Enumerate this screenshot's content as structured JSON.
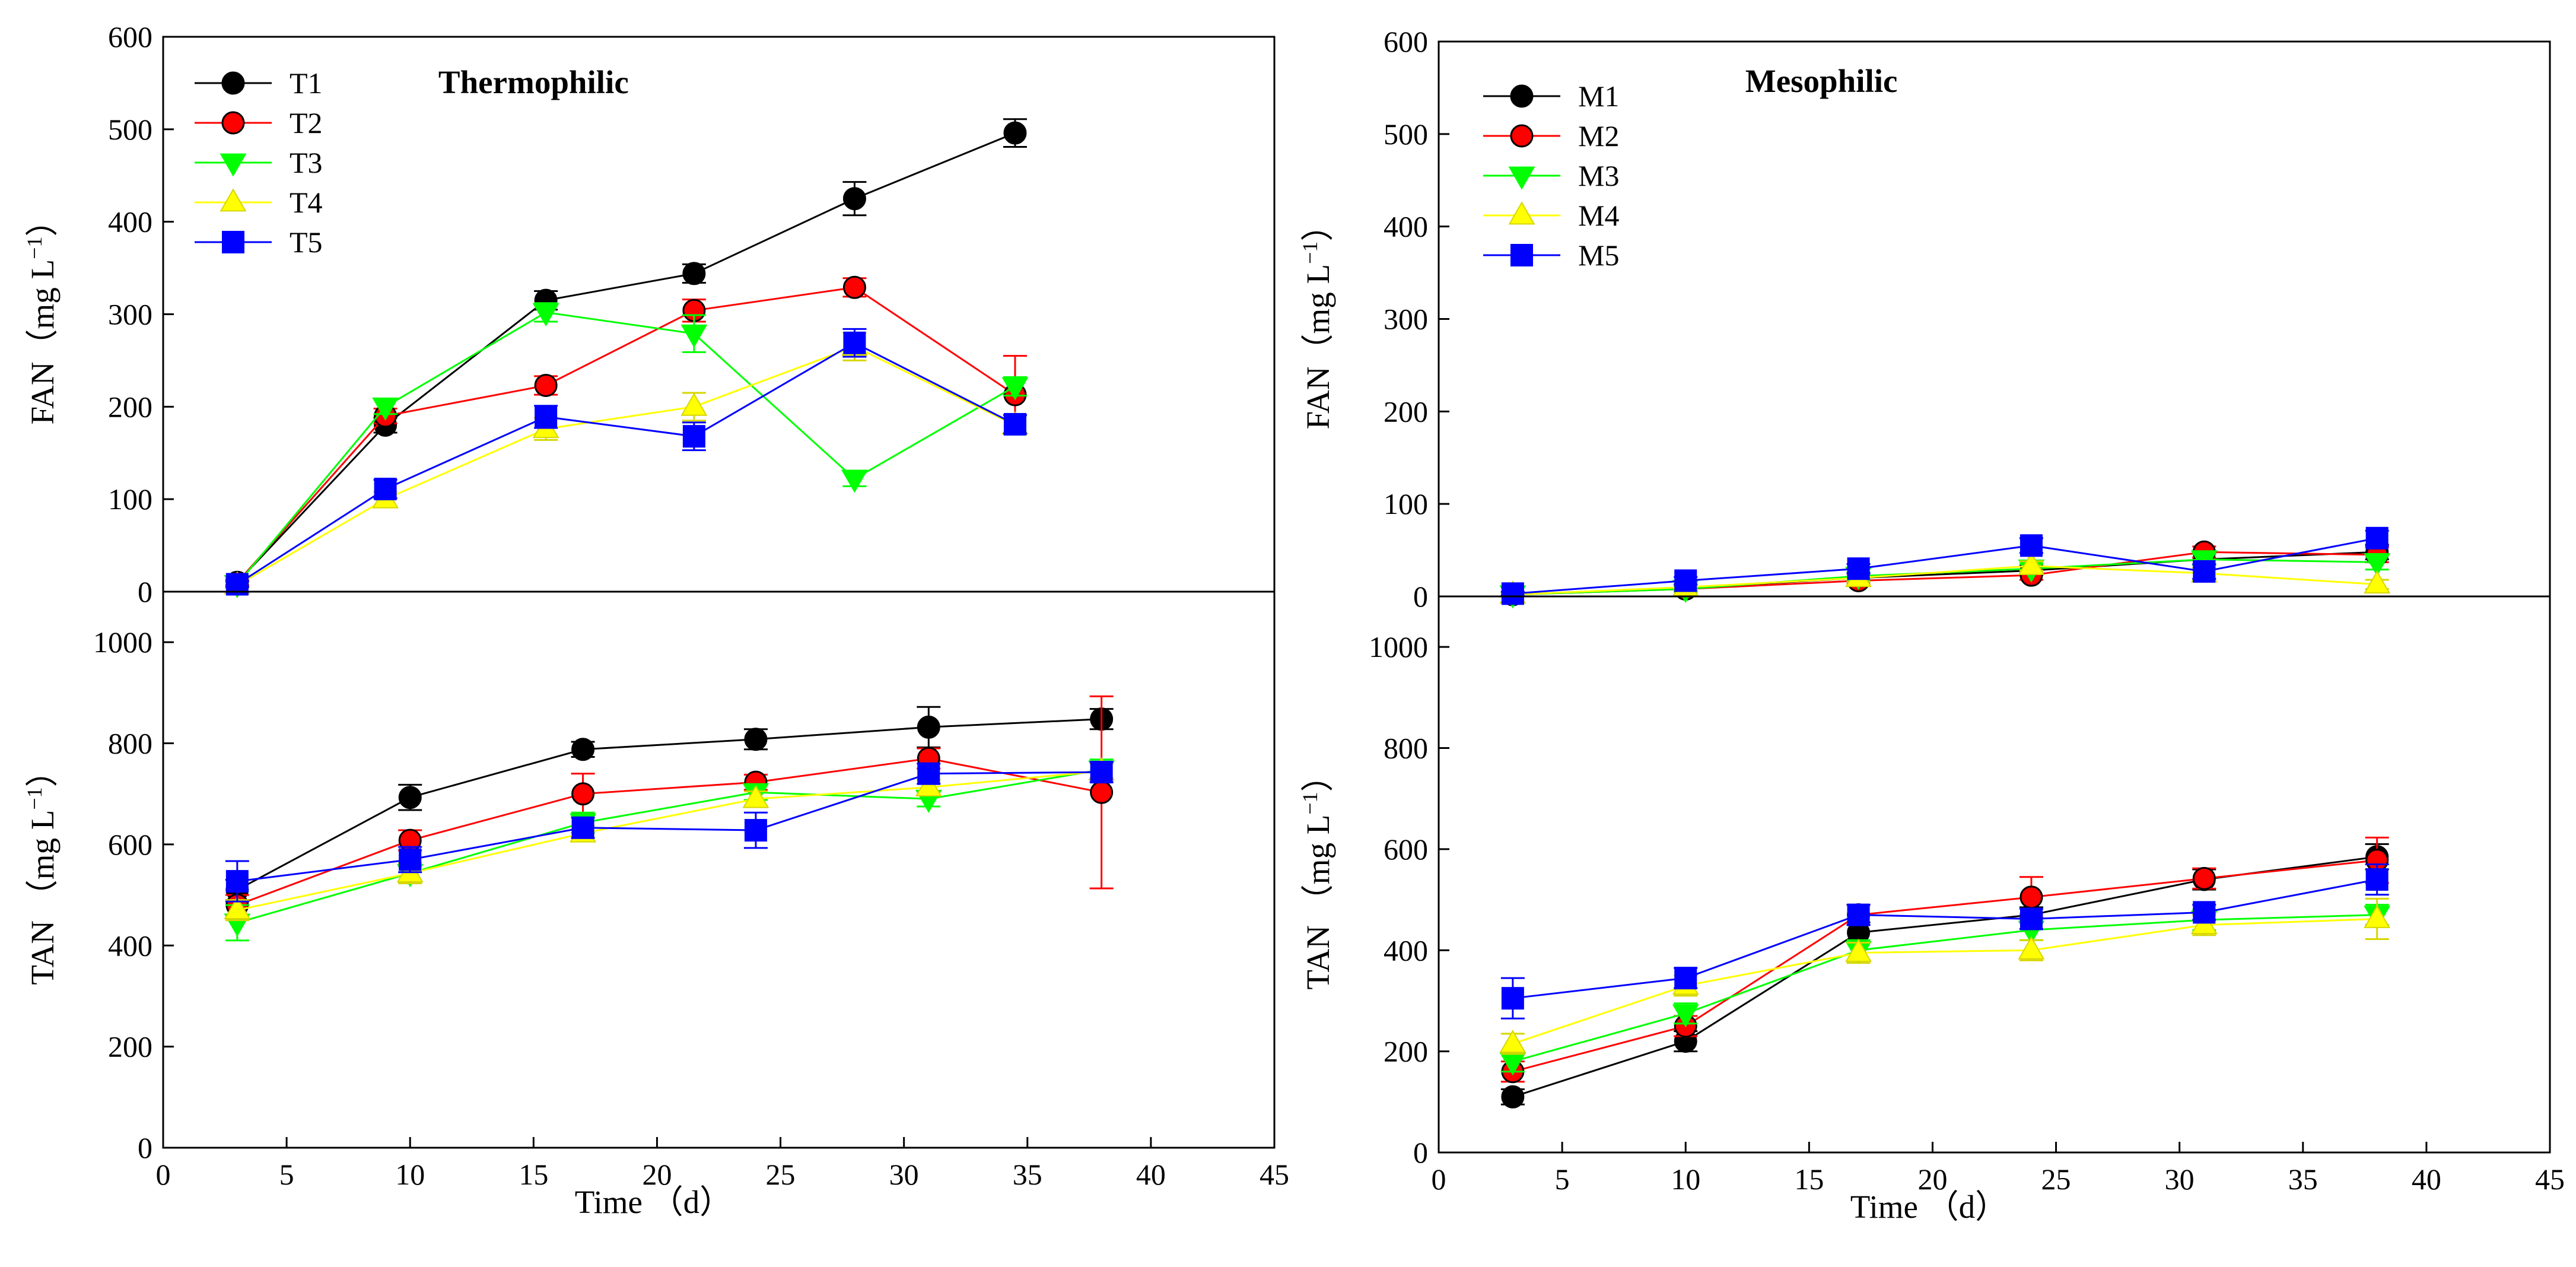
{
  "chart_data": [
    {
      "type": "line",
      "title": "Thermophilic",
      "xlabel": "",
      "ylabel": "FAN（mg L⁻¹）",
      "ylabel_main": "FAN（mg L",
      "ylabel_sup": "−1",
      "ylabel_close": "）",
      "xlim": [
        0,
        45
      ],
      "ylim": [
        0,
        600
      ],
      "yticks": [
        0,
        100,
        200,
        300,
        400,
        500,
        600
      ],
      "xticks": [],
      "legend": "top-left",
      "series": [
        {
          "name": "T1",
          "color": "#000000",
          "marker": "circle",
          "x": [
            3,
            9,
            15.5,
            21.5,
            28,
            34.5
          ],
          "y": [
            10,
            180,
            315,
            344,
            425,
            496
          ],
          "err": [
            3,
            8,
            10,
            10,
            18,
            15
          ]
        },
        {
          "name": "T2",
          "color": "#ff0000",
          "marker": "circle",
          "x": [
            3,
            9,
            15.5,
            21.5,
            28,
            34.5
          ],
          "y": [
            10,
            190,
            223,
            304,
            329,
            213
          ],
          "err": [
            3,
            8,
            10,
            12,
            10,
            42
          ]
        },
        {
          "name": "T3",
          "color": "#00ff00",
          "marker": "triangle-down",
          "x": [
            3,
            9,
            15.5,
            21.5,
            28,
            34.5
          ],
          "y": [
            8,
            200,
            302,
            279,
            122,
            222
          ],
          "err": [
            3,
            8,
            10,
            20,
            8,
            10
          ]
        },
        {
          "name": "T4",
          "color": "#ffff00",
          "marker": "triangle-up",
          "x": [
            3,
            9,
            15.5,
            21.5,
            28,
            34.5
          ],
          "y": [
            7,
            100,
            176,
            200,
            265,
            180
          ],
          "err": [
            3,
            8,
            12,
            15,
            15,
            10
          ]
        },
        {
          "name": "T5",
          "color": "#0000ff",
          "marker": "square",
          "x": [
            3,
            9,
            15.5,
            21.5,
            28,
            34.5
          ],
          "y": [
            8,
            111,
            189,
            168,
            269,
            181
          ],
          "err": [
            3,
            10,
            12,
            15,
            15,
            10
          ]
        }
      ]
    },
    {
      "type": "line",
      "title": "",
      "xlabel": "Time （d）",
      "ylabel": "TAN （mg L⁻¹）",
      "ylabel_main": "TAN （mg L",
      "ylabel_sup": "−1",
      "ylabel_close": "）",
      "xlim": [
        0,
        45
      ],
      "ylim": [
        0,
        1100
      ],
      "yticks": [
        0,
        200,
        400,
        600,
        800,
        1000
      ],
      "xticks": [
        0,
        5,
        10,
        15,
        20,
        25,
        30,
        35,
        40,
        45
      ],
      "legend": "",
      "series": [
        {
          "name": "T1",
          "color": "#000000",
          "marker": "circle",
          "x": [
            3,
            10,
            17,
            24,
            31,
            38
          ],
          "y": [
            510,
            693,
            788,
            808,
            832,
            848
          ],
          "err": [
            20,
            25,
            15,
            20,
            40,
            20
          ]
        },
        {
          "name": "T2",
          "color": "#ff0000",
          "marker": "circle",
          "x": [
            3,
            10,
            17,
            24,
            31,
            38
          ],
          "y": [
            480,
            608,
            700,
            723,
            770,
            703
          ],
          "err": [
            20,
            20,
            40,
            15,
            20,
            190
          ]
        },
        {
          "name": "T3",
          "color": "#00ff00",
          "marker": "triangle-down",
          "x": [
            3,
            10,
            17,
            24,
            31,
            38
          ],
          "y": [
            445,
            543,
            643,
            703,
            690,
            748
          ],
          "err": [
            35,
            20,
            20,
            15,
            15,
            20
          ]
        },
        {
          "name": "T4",
          "color": "#ffff00",
          "marker": "triangle-up",
          "x": [
            3,
            10,
            17,
            24,
            31,
            38
          ],
          "y": [
            470,
            543,
            622,
            690,
            713,
            745
          ],
          "err": [
            20,
            20,
            15,
            15,
            15,
            15
          ]
        },
        {
          "name": "T5",
          "color": "#0000ff",
          "marker": "square",
          "x": [
            3,
            10,
            17,
            24,
            31,
            38
          ],
          "y": [
            527,
            570,
            633,
            628,
            740,
            743
          ],
          "err": [
            40,
            25,
            20,
            35,
            20,
            20
          ]
        }
      ]
    },
    {
      "type": "line",
      "title": "Mesophilic",
      "xlabel": "",
      "ylabel": "FAN（mg L⁻¹）",
      "ylabel_main": "FAN（mg L",
      "ylabel_sup": "−1",
      "ylabel_close": "）",
      "xlim": [
        0,
        45
      ],
      "ylim": [
        0,
        600
      ],
      "yticks": [
        0,
        100,
        200,
        300,
        400,
        500,
        600
      ],
      "xticks": [],
      "legend": "top-left",
      "series": [
        {
          "name": "M1",
          "color": "#000000",
          "marker": "circle",
          "x": [
            3,
            10,
            17,
            24,
            31,
            38
          ],
          "y": [
            2,
            9,
            20,
            28,
            40,
            48
          ],
          "err": [
            2,
            3,
            4,
            5,
            6,
            8
          ]
        },
        {
          "name": "M2",
          "color": "#ff0000",
          "marker": "circle",
          "x": [
            3,
            10,
            17,
            24,
            31,
            38
          ],
          "y": [
            2,
            8,
            17,
            23,
            48,
            45
          ],
          "err": [
            2,
            3,
            4,
            5,
            6,
            8
          ]
        },
        {
          "name": "M3",
          "color": "#00ff00",
          "marker": "triangle-down",
          "x": [
            3,
            10,
            17,
            24,
            31,
            38
          ],
          "y": [
            2,
            8,
            22,
            30,
            40,
            37
          ],
          "err": [
            2,
            3,
            4,
            5,
            6,
            8
          ]
        },
        {
          "name": "M4",
          "color": "#ffff00",
          "marker": "triangle-up",
          "x": [
            3,
            10,
            17,
            24,
            31,
            38
          ],
          "y": [
            2,
            10,
            20,
            33,
            25,
            13
          ],
          "err": [
            2,
            3,
            4,
            5,
            6,
            5
          ]
        },
        {
          "name": "M5",
          "color": "#0000ff",
          "marker": "square",
          "x": [
            3,
            10,
            17,
            24,
            31,
            38
          ],
          "y": [
            3,
            17,
            30,
            55,
            27,
            63
          ],
          "err": [
            2,
            4,
            5,
            8,
            8,
            8
          ]
        }
      ]
    },
    {
      "type": "line",
      "title": "",
      "xlabel": "Time （d）",
      "ylabel": "TAN （mg L⁻¹）",
      "ylabel_main": "TAN （mg L",
      "ylabel_sup": "−1",
      "ylabel_close": "）",
      "xlim": [
        0,
        45
      ],
      "ylim": [
        0,
        1100
      ],
      "yticks": [
        0,
        200,
        400,
        600,
        800,
        1000
      ],
      "xticks": [
        0,
        5,
        10,
        15,
        20,
        25,
        30,
        35,
        40,
        45
      ],
      "legend": "",
      "series": [
        {
          "name": "M1",
          "color": "#000000",
          "marker": "circle",
          "x": [
            3,
            10,
            17,
            24,
            31,
            38
          ],
          "y": [
            110,
            220,
            435,
            470,
            540,
            585
          ],
          "err": [
            15,
            20,
            20,
            15,
            20,
            25
          ]
        },
        {
          "name": "M2",
          "color": "#ff0000",
          "marker": "circle",
          "x": [
            3,
            10,
            17,
            24,
            31,
            38
          ],
          "y": [
            160,
            250,
            470,
            505,
            542,
            578
          ],
          "err": [
            20,
            20,
            20,
            40,
            20,
            45
          ]
        },
        {
          "name": "M3",
          "color": "#00ff00",
          "marker": "triangle-down",
          "x": [
            3,
            10,
            17,
            24,
            31,
            38
          ],
          "y": [
            180,
            275,
            400,
            440,
            460,
            470
          ],
          "err": [
            20,
            20,
            20,
            20,
            20,
            20
          ]
        },
        {
          "name": "M4",
          "color": "#ffff00",
          "marker": "triangle-up",
          "x": [
            3,
            10,
            17,
            24,
            31,
            38
          ],
          "y": [
            215,
            330,
            395,
            400,
            450,
            462
          ],
          "err": [
            20,
            20,
            20,
            20,
            20,
            40
          ]
        },
        {
          "name": "M5",
          "color": "#0000ff",
          "marker": "square",
          "x": [
            3,
            10,
            17,
            24,
            31,
            38
          ],
          "y": [
            305,
            345,
            470,
            462,
            475,
            540
          ],
          "err": [
            40,
            20,
            20,
            20,
            15,
            30
          ]
        }
      ]
    }
  ]
}
